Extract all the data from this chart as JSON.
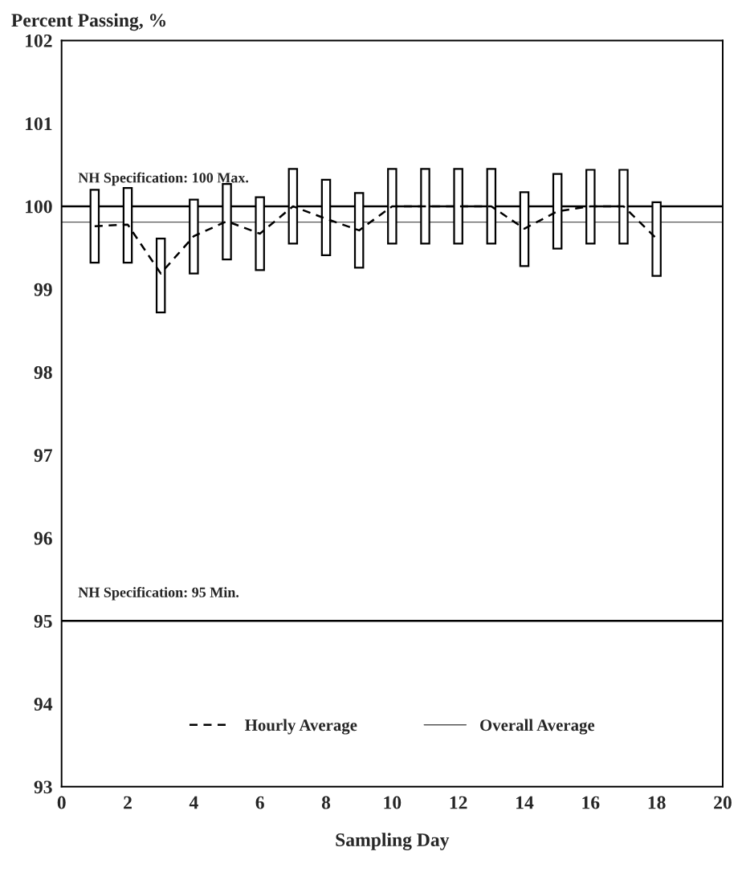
{
  "chart_data": {
    "type": "bar",
    "ylabel": "Percent Passing, %",
    "xlabel": "Sampling Day",
    "x": [
      1,
      2,
      3,
      4,
      5,
      6,
      7,
      8,
      9,
      10,
      11,
      12,
      13,
      14,
      15,
      16,
      17,
      18
    ],
    "base": [
      99.32,
      99.32,
      98.72,
      99.19,
      99.36,
      99.23,
      99.55,
      99.41,
      99.26,
      99.55,
      99.55,
      99.55,
      99.55,
      99.28,
      99.49,
      99.55,
      99.55,
      99.16
    ],
    "values": [
      0.88,
      0.9,
      0.89,
      0.89,
      0.91,
      0.88,
      0.9,
      0.91,
      0.9,
      0.9,
      0.9,
      0.9,
      0.9,
      0.89,
      0.9,
      0.89,
      0.89,
      0.89
    ],
    "color": "#000000",
    "series": [
      {
        "type": "line",
        "name": "Hourly Average",
        "color": "#000000",
        "line_style": "dashed",
        "values": [
          99.76,
          99.78,
          99.19,
          99.64,
          99.82,
          99.67,
          100.0,
          99.85,
          99.71,
          100.0,
          100.0,
          100.0,
          100.0,
          99.73,
          99.94,
          100.0,
          100.0,
          99.61
        ]
      },
      {
        "type": "line",
        "name": "Overall Average",
        "color": "#555555",
        "line_style": "solid",
        "x": [
          0,
          20
        ],
        "values": [
          99.81,
          99.81
        ]
      }
    ],
    "ref_lines": [
      {
        "axis": "y",
        "value": 100,
        "label": "NH Specification: 100 Max.",
        "color": "#000000",
        "line_style": "solid"
      },
      {
        "axis": "y",
        "value": 95,
        "label": "NH Specification: 95 Min.",
        "color": "#000000",
        "line_style": "solid"
      }
    ],
    "xlim": [
      0,
      20
    ],
    "xticks": [
      0,
      2,
      4,
      6,
      8,
      10,
      12,
      14,
      16,
      18,
      20
    ],
    "ylim": [
      93,
      102
    ],
    "yticks": [
      93,
      94,
      95,
      96,
      97,
      98,
      99,
      100,
      101,
      102
    ],
    "grid": false,
    "legend": "bottom"
  }
}
